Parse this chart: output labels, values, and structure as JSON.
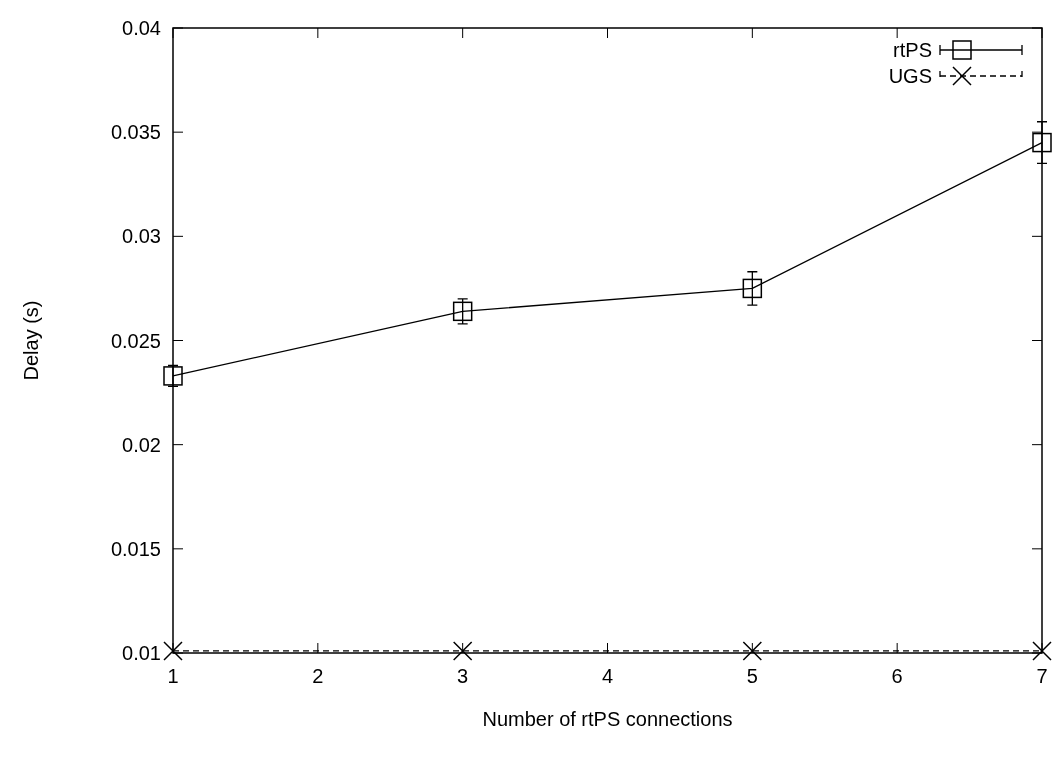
{
  "chart_data": {
    "type": "line",
    "xlabel": "Number of rtPS connections",
    "ylabel": "Delay (s)",
    "x": [
      1,
      3,
      5,
      7
    ],
    "series": [
      {
        "name": "rtPS",
        "color": "#000000",
        "marker": "square",
        "line_style": "solid",
        "values": [
          0.0233,
          0.0264,
          0.0275,
          0.0345
        ],
        "errors": [
          0.0005,
          0.0006,
          0.0008,
          0.001
        ]
      },
      {
        "name": "UGS",
        "color": "#000000",
        "marker": "cross",
        "line_style": "dashed",
        "values": [
          0.0101,
          0.0101,
          0.0101,
          0.0101
        ]
      }
    ],
    "xlim": [
      1,
      7
    ],
    "xticks": [
      1,
      2,
      3,
      4,
      5,
      6,
      7
    ],
    "ylim": [
      0.01,
      0.04
    ],
    "yticks": [
      0.01,
      0.015,
      0.02,
      0.025,
      0.03,
      0.035,
      0.04
    ],
    "grid": false,
    "legend": "top right"
  }
}
